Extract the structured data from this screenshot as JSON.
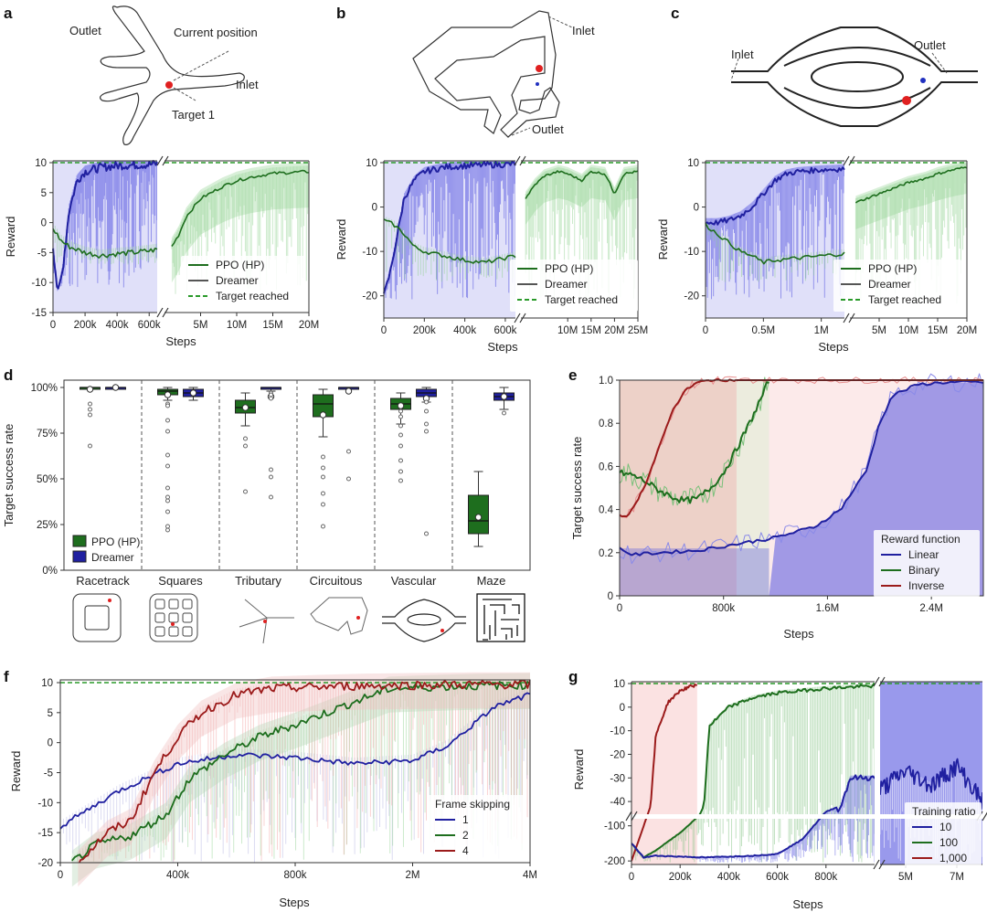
{
  "colors": {
    "ppo": "#1e6e1e",
    "ppo_fill": "#8fd18f",
    "dreamer": "#2020a0",
    "dreamer_fill": "#5555e0",
    "inverse": "#9b1b1b",
    "inverse_fill": "#f2a0a0",
    "target": "#2a9a2a"
  },
  "panels": {
    "a": {
      "label": "a",
      "annotations": [
        "Outlet",
        "Current position",
        "Inlet",
        "Target 1"
      ]
    },
    "b": {
      "label": "b",
      "annotations": [
        "Inlet",
        "Outlet"
      ]
    },
    "c": {
      "label": "c",
      "annotations": [
        "Inlet",
        "Outlet"
      ]
    },
    "d": {
      "label": "d"
    },
    "e": {
      "label": "e"
    },
    "f": {
      "label": "f"
    },
    "g": {
      "label": "g"
    }
  },
  "legend_abc": [
    "PPO (HP)",
    "Dreamer",
    "Target reached"
  ],
  "legend_d": [
    "PPO (HP)",
    "Dreamer"
  ],
  "legend_e": {
    "title": "Reward function",
    "items": [
      "Linear",
      "Binary",
      "Inverse"
    ]
  },
  "legend_f": {
    "title": "Frame skipping",
    "items": [
      "1",
      "2",
      "4"
    ]
  },
  "legend_g": {
    "title": "Training ratio",
    "items": [
      "10",
      "100",
      "1,000"
    ]
  },
  "chart_data": [
    {
      "panel": "a",
      "type": "line",
      "xlabel": "Steps",
      "ylabel": "Reward",
      "ylim": [
        -15,
        10
      ],
      "yticks": [
        "10",
        "5",
        "0",
        "-5",
        "-10",
        "-15"
      ],
      "xticks_left": [
        "0",
        "200k",
        "400k",
        "600k"
      ],
      "xticks_right": [
        "5M",
        "10M",
        "15M",
        "20M"
      ],
      "series": [
        {
          "name": "Dreamer",
          "x_k": [
            0,
            30,
            60,
            100,
            150,
            200,
            300,
            400,
            500,
            600,
            650
          ],
          "y": [
            -4,
            -12,
            -8,
            2,
            7,
            8.5,
            9.2,
            9.5,
            9.6,
            9.7,
            9.8
          ]
        },
        {
          "name": "PPO (HP)",
          "x_k": [
            0,
            50,
            100,
            200,
            300,
            400,
            500,
            600,
            650
          ],
          "y": [
            -1,
            -3,
            -4,
            -5,
            -5.5,
            -5.2,
            -5,
            -4.7,
            -4.5
          ]
        },
        {
          "name": "PPO (HP)",
          "x_M": [
            1,
            2,
            3,
            5,
            8,
            10,
            12,
            15,
            18,
            20
          ],
          "y": [
            -4,
            -2,
            1,
            4,
            6,
            7,
            7.6,
            8.2,
            8.4,
            8.5
          ]
        },
        {
          "name": "Target reached",
          "y": 10
        }
      ]
    },
    {
      "panel": "b",
      "type": "line",
      "xlabel": "Steps",
      "ylabel": "Reward",
      "ylim": [
        -25,
        10
      ],
      "yticks": [
        "10",
        "0",
        "-10",
        "-20"
      ],
      "xticks_left": [
        "0",
        "200k",
        "400k",
        "600k"
      ],
      "xticks_right": [
        "10M",
        "15M",
        "20M",
        "25M"
      ],
      "series": [
        {
          "name": "Dreamer",
          "x_k": [
            0,
            30,
            60,
            100,
            150,
            200,
            300,
            400,
            500,
            600,
            650
          ],
          "y": [
            -20,
            -15,
            -8,
            2,
            6,
            8,
            9,
            9.3,
            9.5,
            9.6,
            9.7
          ]
        },
        {
          "name": "PPO (HP)",
          "x_k": [
            0,
            50,
            100,
            150,
            200,
            300,
            400,
            500,
            600,
            650
          ],
          "y": [
            -3,
            -4,
            -6,
            -9,
            -10,
            -11,
            -12,
            -12.5,
            -11.5,
            -11
          ]
        },
        {
          "name": "PPO (HP)",
          "x_M": [
            1,
            3,
            5,
            8,
            10,
            13,
            15,
            18,
            20,
            22,
            25
          ],
          "y": [
            2,
            5,
            7,
            8,
            7.5,
            6,
            8,
            7.5,
            3,
            7.5,
            8
          ]
        },
        {
          "name": "Target reached",
          "y": 10
        }
      ]
    },
    {
      "panel": "c",
      "type": "line",
      "xlabel": "Steps",
      "ylabel": "Reward",
      "ylim": [
        -25,
        10
      ],
      "yticks": [
        "10",
        "0",
        "-10",
        "-20"
      ],
      "xticks_left": [
        "0",
        "0.5M",
        "1M"
      ],
      "xticks_right": [
        "5M",
        "10M",
        "15M",
        "20M"
      ],
      "series": [
        {
          "name": "Dreamer",
          "x_M": [
            0,
            0.1,
            0.2,
            0.3,
            0.4,
            0.5,
            0.6,
            0.7,
            0.8,
            1.0,
            1.2
          ],
          "y": [
            -3.5,
            -3.5,
            -3,
            -2,
            0,
            3,
            6,
            7.5,
            8,
            8.4,
            8.6
          ]
        },
        {
          "name": "PPO (HP)",
          "x_M": [
            0,
            0.1,
            0.2,
            0.3,
            0.4,
            0.5,
            0.6,
            0.8,
            1.0,
            1.2
          ],
          "y": [
            -4,
            -6,
            -8,
            -10,
            -11,
            -12.5,
            -12,
            -11.5,
            -11,
            -10.5
          ]
        },
        {
          "name": "PPO (HP)",
          "x_M": [
            1,
            3,
            5,
            8,
            10,
            13,
            15,
            18,
            20
          ],
          "y": [
            1,
            2,
            3,
            4.5,
            5.5,
            6.5,
            7.5,
            8.5,
            9
          ]
        },
        {
          "name": "Target reached",
          "y": 10
        }
      ]
    },
    {
      "panel": "d",
      "type": "box",
      "ylabel": "Target success rate",
      "ylim": [
        0,
        100
      ],
      "yticks": [
        "100%",
        "75%",
        "50%",
        "25%",
        "0%"
      ],
      "categories": [
        "Racetrack",
        "Squares",
        "Tributary",
        "Circuitous",
        "Vascular",
        "Maze"
      ],
      "series": [
        {
          "name": "PPO (HP)",
          "boxes": [
            [
              100,
              100,
              100,
              100,
              100
            ],
            [
              93,
              96,
              98,
              99,
              100
            ],
            [
              79,
              86,
              89,
              93,
              97
            ],
            [
              73,
              84,
              91,
              96,
              99
            ],
            [
              80,
              88,
              91,
              94,
              97
            ],
            [
              13,
              20,
              27,
              41,
              54
            ]
          ],
          "means": [
            99,
            96,
            89,
            85,
            90,
            29
          ],
          "outliers": [
            [
              91,
              88,
              85,
              68
            ],
            [
              91,
              90,
              82,
              76,
              63,
              57,
              45,
              40,
              38,
              32,
              24,
              22
            ],
            [
              72,
              68,
              43
            ],
            [
              62,
              56,
              51,
              42,
              36,
              24
            ],
            [
              87,
              84,
              79,
              74,
              68,
              60,
              54,
              49
            ],
            []
          ]
        },
        {
          "name": "Dreamer",
          "boxes": [
            [
              100,
              100,
              100,
              100,
              100
            ],
            [
              93,
              95,
              97,
              99,
              100
            ],
            [
              98,
              99,
              100,
              100,
              100
            ],
            [
              100,
              100,
              100,
              100,
              100
            ],
            [
              92,
              95,
              97,
              99,
              100
            ],
            [
              88,
              93,
              95,
              97,
              100
            ]
          ],
          "means": [
            100,
            97,
            95,
            98,
            94,
            95
          ],
          "outliers": [
            [],
            [],
            [
              97,
              96,
              94,
              55,
              51,
              40
            ],
            [
              65,
              50
            ],
            [
              92,
              87,
              80,
              76,
              20
            ],
            [
              86
            ]
          ]
        }
      ]
    },
    {
      "panel": "e",
      "type": "line",
      "xlabel": "Steps",
      "ylabel": "Target success rate",
      "ylim": [
        0,
        1
      ],
      "yticks": [
        "1.0",
        "0.8",
        "0.6",
        "0.4",
        "0.2",
        "0"
      ],
      "xticks": [
        "0",
        "800k",
        "1.6M",
        "2.4M"
      ],
      "series": [
        {
          "name": "Linear",
          "x_k": [
            0,
            100,
            300,
            600,
            900,
            1200,
            1500,
            1700,
            1900,
            2000,
            2100,
            2300,
            2500,
            2800
          ],
          "y": [
            0.22,
            0.19,
            0.2,
            0.21,
            0.24,
            0.27,
            0.32,
            0.4,
            0.58,
            0.8,
            0.93,
            0.98,
            0.99,
            0.99
          ]
        },
        {
          "name": "Binary",
          "x_k": [
            0,
            100,
            200,
            300,
            400,
            500,
            600,
            700,
            800,
            900,
            1000,
            1100,
            1150
          ],
          "y": [
            0.57,
            0.56,
            0.53,
            0.49,
            0.46,
            0.44,
            0.45,
            0.5,
            0.57,
            0.68,
            0.8,
            0.93,
            1.0
          ]
        },
        {
          "name": "Inverse",
          "x_k": [
            0,
            50,
            100,
            200,
            300,
            400,
            500,
            600,
            700,
            800,
            900
          ],
          "y": [
            0.37,
            0.37,
            0.4,
            0.52,
            0.68,
            0.85,
            0.95,
            0.99,
            1.0,
            1.0,
            1.0
          ]
        }
      ]
    },
    {
      "panel": "f",
      "type": "line",
      "xlabel": "Steps",
      "ylabel": "Reward",
      "ylim": [
        -20,
        10
      ],
      "yticks": [
        "10",
        "5",
        "0",
        "-5",
        "-10",
        "-15",
        "-20"
      ],
      "xticks": [
        "0",
        "400k",
        "800k",
        "2M",
        "4M"
      ],
      "series": [
        {
          "name": "1",
          "x_idx": [
            0,
            0.5,
            1,
            1.5,
            2,
            2.5,
            3,
            3.3,
            3.7,
            4
          ],
          "y": [
            -14,
            -8,
            -3.5,
            -2,
            -2.5,
            -3.5,
            -3,
            -0.5,
            6,
            8
          ]
        },
        {
          "name": "2",
          "x_idx": [
            0.1,
            0.3,
            0.6,
            0.9,
            1.1,
            1.4,
            1.7,
            2,
            2.4,
            2.8,
            3.2,
            3.6,
            4
          ],
          "y": [
            -20,
            -17,
            -15.5,
            -12,
            -6,
            -2,
            1,
            3,
            6,
            9,
            9.3,
            9.5,
            9.6
          ]
        },
        {
          "name": "4",
          "x_idx": [
            0.15,
            0.4,
            0.6,
            0.8,
            1.0,
            1.2,
            1.5,
            1.8,
            2.2,
            2.6,
            3,
            3.5,
            4
          ],
          "y": [
            -20,
            -15,
            -13,
            -5,
            1,
            5,
            8,
            9,
            9.3,
            9.5,
            9.6,
            9.7,
            9.7
          ]
        },
        {
          "name": "target",
          "y": 10
        }
      ]
    },
    {
      "panel": "g",
      "type": "line",
      "xlabel": "Steps",
      "ylabel": "Reward",
      "yticks": [
        "10",
        "0",
        "-10",
        "-20",
        "-30",
        "-40",
        "-100",
        "-200"
      ],
      "xticks_left": [
        "0",
        "200k",
        "400k",
        "600k",
        "800k"
      ],
      "xticks_right": [
        "5M",
        "7M"
      ],
      "series": [
        {
          "name": "1,000",
          "x_k": [
            0,
            20,
            50,
            80,
            100,
            150,
            200,
            250,
            270
          ],
          "y": [
            -200,
            -160,
            -100,
            -40,
            -12,
            2,
            7,
            9,
            9.5
          ]
        },
        {
          "name": "100",
          "x_k": [
            0,
            50,
            100,
            200,
            280,
            320,
            400,
            500,
            600,
            700,
            800,
            900,
            1000
          ],
          "y": [
            -150,
            -190,
            -170,
            -120,
            -70,
            -8,
            0,
            4,
            6,
            7,
            8,
            8.5,
            9
          ]
        },
        {
          "name": "10",
          "x_k": [
            0,
            50,
            100,
            300,
            500,
            600,
            700,
            800,
            900,
            1000
          ],
          "y": [
            -150,
            -190,
            -185,
            -190,
            -185,
            -180,
            -140,
            -60,
            -30,
            -30
          ]
        },
        {
          "name": "10",
          "x_M": [
            4,
            5,
            6,
            7,
            8
          ],
          "y": [
            -35,
            -27,
            -33,
            -25,
            -40
          ]
        },
        {
          "name": "target",
          "y": 10
        }
      ]
    }
  ]
}
